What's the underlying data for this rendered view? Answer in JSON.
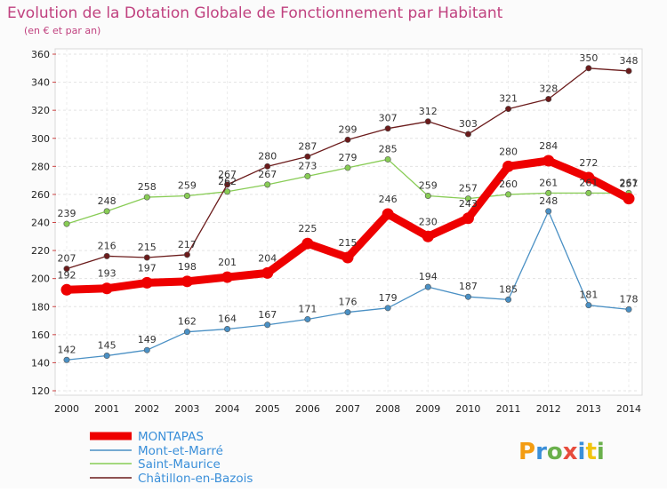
{
  "title": "Evolution de la Dotation Globale de Fonctionnement par Habitant",
  "subtitle": "(en € et par an)",
  "brand": "Proxiti",
  "chart_data": {
    "type": "line",
    "title": "Evolution de la Dotation Globale de Fonctionnement par Habitant",
    "subtitle": "(en € et par an)",
    "xlabel": "",
    "ylabel": "",
    "x": [
      "2000",
      "2001",
      "2002",
      "2003",
      "2004",
      "2005",
      "2006",
      "2007",
      "2008",
      "2009",
      "2010",
      "2011",
      "2012",
      "2013",
      "2014"
    ],
    "ylim": [
      120,
      360
    ],
    "yticks": [
      120,
      140,
      160,
      180,
      200,
      220,
      240,
      260,
      280,
      300,
      320,
      340,
      360
    ],
    "grid": true,
    "legend_position": "bottom-left",
    "series": [
      {
        "name": "MONTAPAS",
        "color": "#ee0000",
        "values": [
          192,
          193,
          197,
          198,
          201,
          204,
          225,
          215,
          246,
          230,
          243,
          280,
          284,
          272,
          257
        ]
      },
      {
        "name": "Mont-et-Marré",
        "color": "#4a90c4",
        "values": [
          142,
          145,
          149,
          162,
          164,
          167,
          171,
          176,
          179,
          194,
          187,
          185,
          248,
          181,
          178
        ]
      },
      {
        "name": "Saint-Maurice",
        "color": "#88cc55",
        "values": [
          239,
          248,
          258,
          259,
          262,
          267,
          273,
          279,
          285,
          259,
          257,
          260,
          261,
          261,
          261
        ]
      },
      {
        "name": "Châtillon-en-Bazois",
        "color": "#6b1b1b",
        "values": [
          207,
          216,
          215,
          217,
          267,
          280,
          287,
          299,
          307,
          312,
          303,
          321,
          328,
          350,
          348
        ]
      }
    ]
  }
}
